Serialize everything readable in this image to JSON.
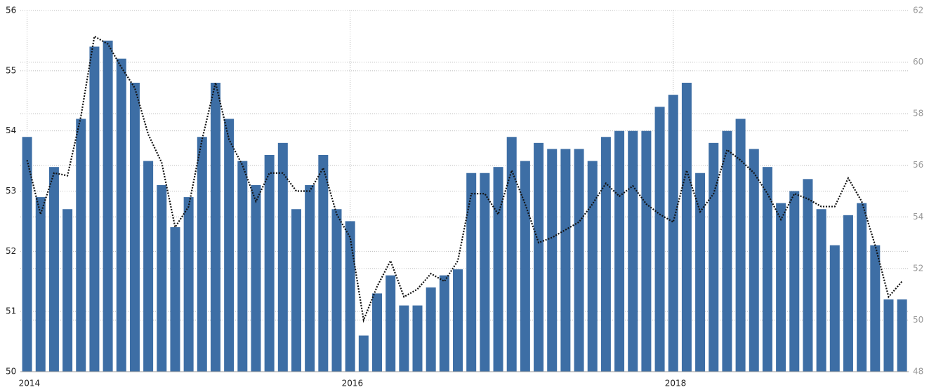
{
  "chart_data": {
    "type": "bar",
    "categories": [
      "2014",
      null,
      null,
      null,
      null,
      null,
      null,
      null,
      null,
      null,
      null,
      null,
      null,
      null,
      null,
      null,
      null,
      null,
      null,
      null,
      null,
      null,
      null,
      null,
      "2016",
      null,
      null,
      null,
      null,
      null,
      null,
      null,
      null,
      null,
      null,
      null,
      null,
      null,
      null,
      null,
      null,
      null,
      null,
      null,
      null,
      null,
      null,
      null,
      "2018",
      null,
      null,
      null,
      null,
      null,
      null,
      null,
      null,
      null,
      null,
      null,
      null,
      null,
      null,
      null,
      null,
      null
    ],
    "series": [
      {
        "type": "bar",
        "color": "#3d6ea5",
        "axis": "y",
        "values": [
          53.9,
          52.9,
          53.4,
          52.7,
          54.2,
          55.4,
          55.5,
          55.2,
          54.8,
          53.5,
          53.1,
          52.4,
          52.9,
          53.9,
          54.8,
          54.2,
          53.5,
          53.1,
          53.6,
          53.8,
          52.7,
          53.1,
          53.6,
          52.7,
          52.5,
          50.6,
          51.3,
          51.6,
          51.1,
          51.1,
          51.4,
          51.6,
          51.7,
          53.3,
          53.3,
          53.4,
          53.9,
          53.5,
          53.8,
          53.7,
          53.7,
          53.7,
          53.5,
          53.9,
          54.0,
          54.0,
          54.0,
          54.4,
          54.6,
          54.8,
          53.3,
          53.8,
          54.0,
          54.2,
          53.7,
          53.4,
          52.8,
          53.0,
          53.2,
          52.7,
          52.1,
          52.6,
          52.8,
          52.1,
          51.2,
          51.2
        ]
      },
      {
        "type": "line",
        "color": "#111111",
        "axis": "y2",
        "values": [
          56.2,
          54.1,
          55.7,
          55.6,
          57.9,
          61.0,
          60.7,
          59.8,
          59.0,
          57.2,
          56.1,
          53.6,
          54.4,
          57.0,
          59.2,
          57.0,
          56.0,
          54.6,
          55.7,
          55.7,
          55.0,
          55.0,
          55.9,
          54.1,
          53.2,
          50.0,
          51.3,
          52.3,
          50.9,
          51.2,
          51.8,
          51.5,
          52.3,
          54.9,
          54.9,
          54.1,
          55.8,
          54.5,
          53.0,
          53.2,
          53.5,
          53.8,
          54.5,
          55.3,
          54.8,
          55.2,
          54.5,
          54.1,
          53.8,
          55.8,
          54.2,
          54.9,
          56.6,
          56.2,
          55.7,
          54.9,
          53.9,
          54.9,
          54.7,
          54.4,
          54.4,
          55.5,
          54.6,
          52.9,
          50.9,
          51.5
        ]
      }
    ],
    "ylim": [
      50,
      56
    ],
    "yticks": [
      50,
      51,
      52,
      53,
      54,
      55,
      56
    ],
    "y2lim": [
      48,
      62
    ],
    "y2ticks": [
      48,
      50,
      52,
      54,
      56,
      58,
      60,
      62
    ],
    "grid": true
  }
}
